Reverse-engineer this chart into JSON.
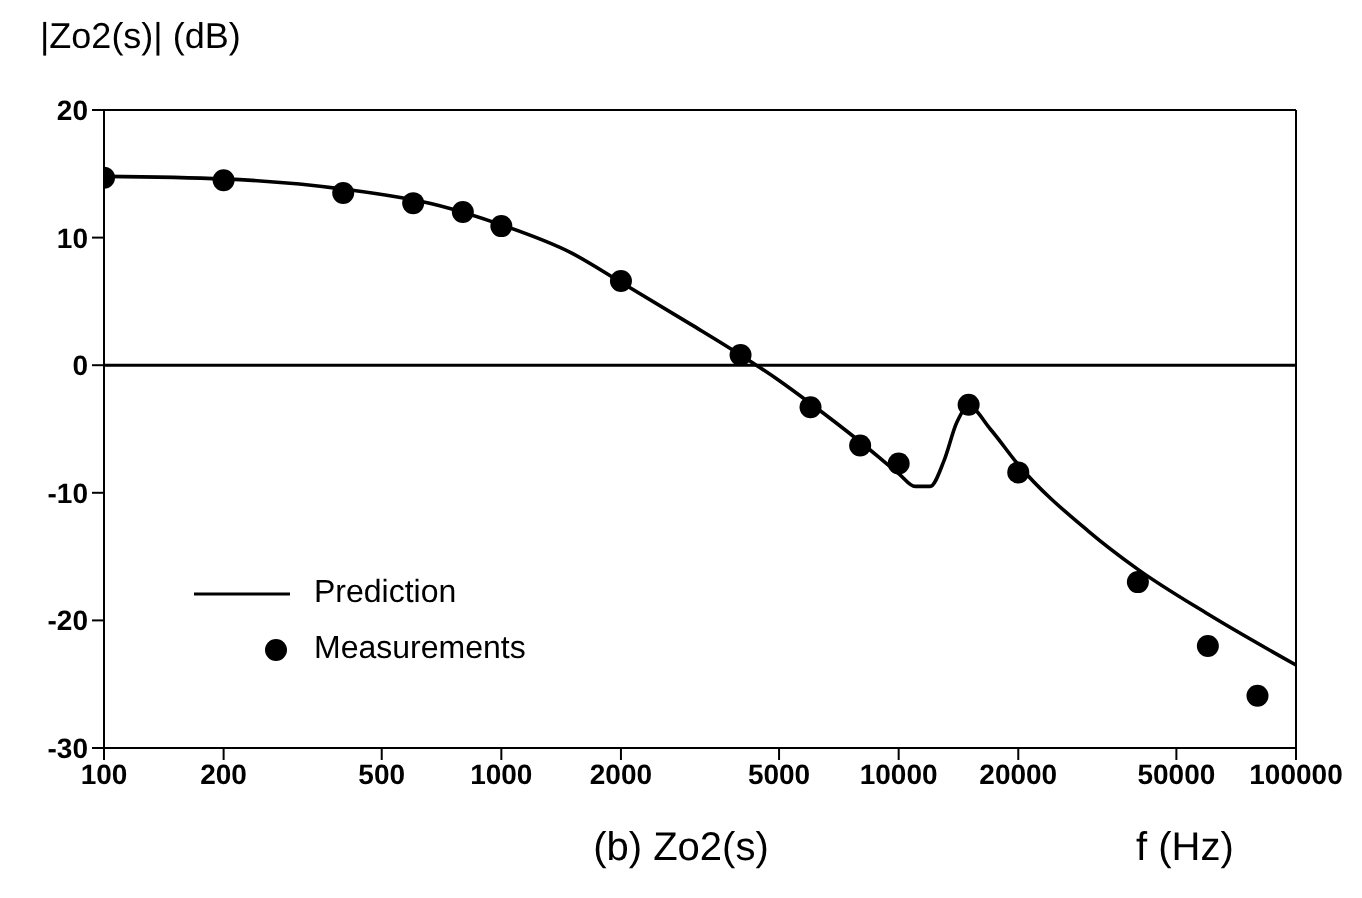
{
  "chart_data": {
    "type": "line",
    "title": "(b) Zo2(s)",
    "xlabel": "f (Hz)",
    "ylabel": "|Zo2(s)| (dB)",
    "log": "x",
    "xlim": [
      100,
      100000
    ],
    "xticks": [
      100,
      200,
      500,
      1000,
      2000,
      5000,
      10000,
      20000,
      50000,
      100000
    ],
    "ylim": [
      -30,
      20
    ],
    "yticks": [
      -30,
      -20,
      -10,
      0,
      10,
      20
    ],
    "grid": false,
    "legend": "bottom left",
    "ref_lines": [
      {
        "axis": "y",
        "value": 0,
        "color": "#000000"
      }
    ],
    "series": [
      {
        "name": "Prediction",
        "marker": "none",
        "line_style": "solid",
        "color": "#000000",
        "x": [
          100,
          200,
          400,
          700,
          1000,
          1500,
          2000,
          3000,
          4000,
          5000,
          6000,
          8000,
          10000,
          11000,
          12000,
          13000,
          14000,
          15000,
          17000,
          20000,
          30000,
          40000,
          60000,
          100000
        ],
        "values": [
          14.8,
          14.6,
          13.8,
          12.5,
          11,
          8.8,
          6.5,
          3.2,
          0.8,
          -1.2,
          -3,
          -6,
          -8.5,
          -9.5,
          -9.5,
          -7.5,
          -4.5,
          -3.2,
          -5,
          -7.8,
          -13,
          -16,
          -19.5,
          -23.5
        ]
      },
      {
        "name": "Measurements",
        "type": "scatter",
        "marker": "circle",
        "color": "#000000",
        "x": [
          100,
          200,
          400,
          600,
          800,
          1000,
          2000,
          4000,
          6000,
          8000,
          10000,
          15000,
          20000,
          40000,
          60000,
          80000
        ],
        "values": [
          14.7,
          14.5,
          13.5,
          12.7,
          12,
          10.9,
          6.6,
          0.8,
          -3.3,
          -6.3,
          -7.7,
          -3.1,
          -8.4,
          -17,
          -22,
          -25.9
        ]
      }
    ]
  }
}
